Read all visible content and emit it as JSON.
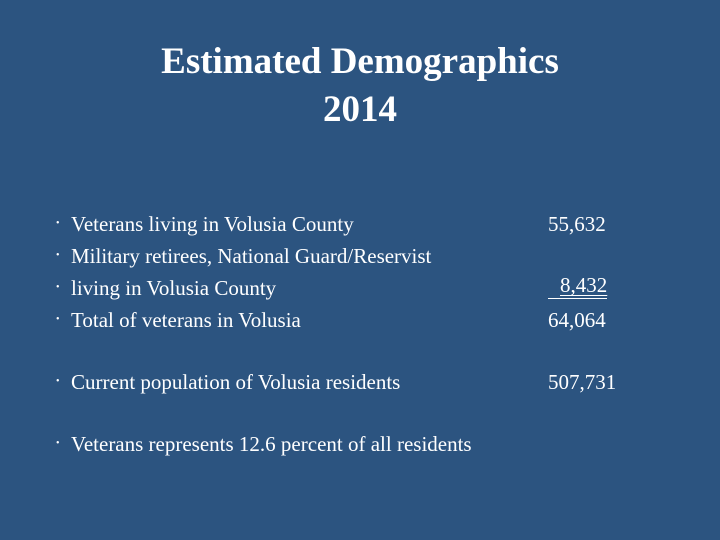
{
  "header": {
    "title_lines": [
      "Estimated Demographics",
      "2014"
    ]
  },
  "bullets": [
    {
      "text": "Veterans living in Volusia County",
      "value": "55,632"
    },
    {
      "text": "Military retirees, National Guard/Reservist"
    },
    {
      "text": "living in Volusia County",
      "value": "8,432"
    },
    {
      "text": "Total of veterans in Volusia",
      "value": "64,064"
    },
    {
      "text": "Current population of Volusia residents",
      "value": "507,731"
    },
    {
      "text": "Veterans represents 12.6 percent of all residents"
    }
  ]
}
